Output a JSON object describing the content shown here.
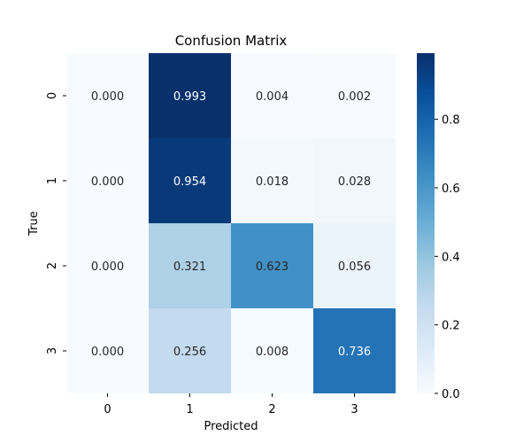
{
  "chart_data": {
    "type": "heatmap",
    "title": "Confusion Matrix",
    "xlabel": "Predicted",
    "ylabel": "True",
    "x_categories": [
      "0",
      "1",
      "2",
      "3"
    ],
    "y_categories": [
      "0",
      "1",
      "2",
      "3"
    ],
    "values": [
      [
        0.0,
        0.993,
        0.004,
        0.002
      ],
      [
        0.0,
        0.954,
        0.018,
        0.028
      ],
      [
        0.0,
        0.321,
        0.623,
        0.056
      ],
      [
        0.0,
        0.256,
        0.008,
        0.736
      ]
    ],
    "cell_labels": [
      [
        "0.000",
        "0.993",
        "0.004",
        "0.002"
      ],
      [
        "0.000",
        "0.954",
        "0.018",
        "0.028"
      ],
      [
        "0.000",
        "0.321",
        "0.623",
        "0.056"
      ],
      [
        "0.000",
        "0.256",
        "0.008",
        "0.736"
      ]
    ],
    "colormap": "Blues",
    "vmin": 0.0,
    "vmax": 0.993,
    "colorbar": {
      "ticks": [
        0.0,
        0.2,
        0.4,
        0.6,
        0.8
      ],
      "tick_labels": [
        "0.0",
        "0.2",
        "0.4",
        "0.6",
        "0.8"
      ]
    }
  }
}
